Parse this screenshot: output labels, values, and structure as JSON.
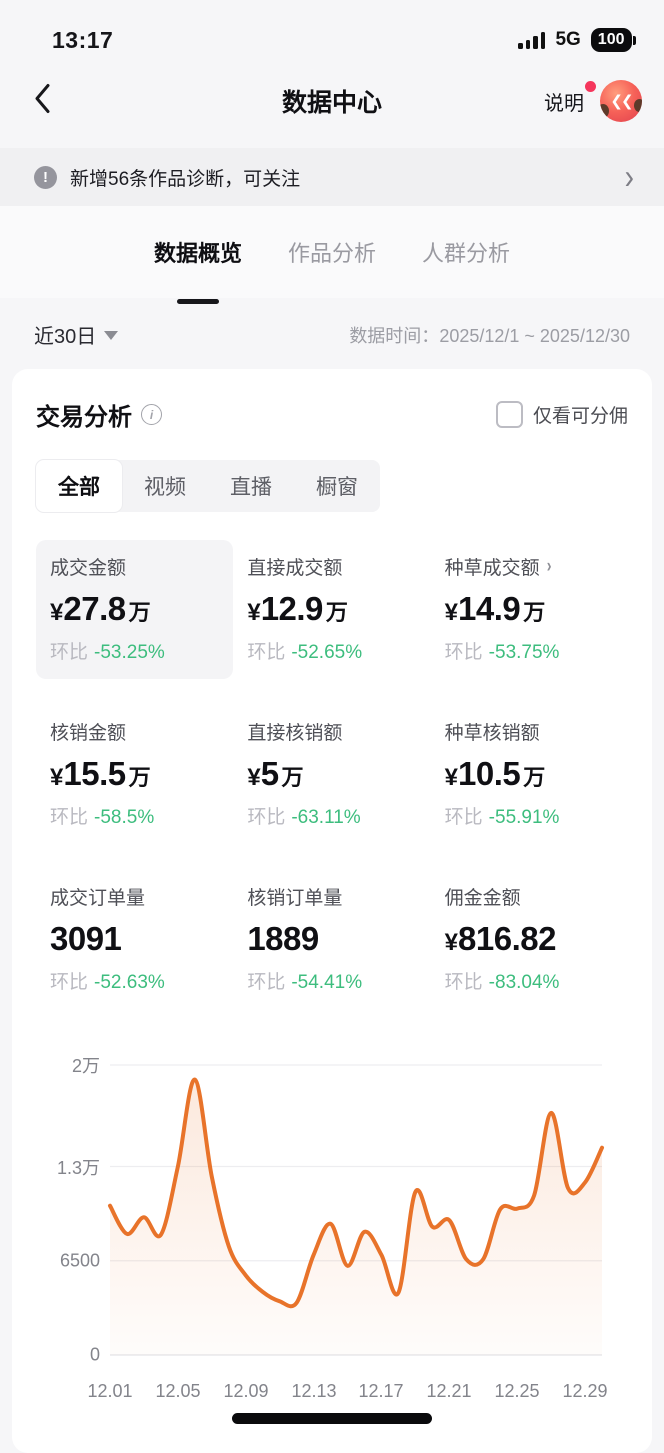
{
  "status_bar": {
    "time": "13:17",
    "network": "5G",
    "battery": "100"
  },
  "header": {
    "title": "数据中心",
    "help_label": "说明"
  },
  "notice": {
    "text": "新增56条作品诊断，可关注"
  },
  "tabs": [
    {
      "label": "数据概览",
      "active": true
    },
    {
      "label": "作品分析",
      "active": false
    },
    {
      "label": "人群分析",
      "active": false
    }
  ],
  "filter": {
    "range_label": "近30日",
    "date_label": "数据时间：",
    "date_range": "2025/12/1 ~ 2025/12/30"
  },
  "section": {
    "title": "交易分析",
    "checkbox_label": "仅看可分佣",
    "checkbox_checked": false
  },
  "sub_tabs": [
    {
      "label": "全部",
      "active": true
    },
    {
      "label": "视频",
      "active": false
    },
    {
      "label": "直播",
      "active": false
    },
    {
      "label": "橱窗",
      "active": false
    }
  ],
  "metrics_common": {
    "ratio_label": "环比"
  },
  "metrics": [
    {
      "label": "成交金额",
      "prefix": "¥",
      "num": "27.8",
      "suffix": "万",
      "ratio": "-53.25%"
    },
    {
      "label": "直接成交额",
      "prefix": "¥",
      "num": "12.9",
      "suffix": "万",
      "ratio": "-52.65%"
    },
    {
      "label": "种草成交额",
      "prefix": "¥",
      "num": "14.9",
      "suffix": "万",
      "ratio": "-53.75%"
    },
    {
      "label": "核销金额",
      "prefix": "¥",
      "num": "15.5",
      "suffix": "万",
      "ratio": "-58.5%"
    },
    {
      "label": "直接核销额",
      "prefix": "¥",
      "num": "5",
      "suffix": "万",
      "ratio": "-63.11%"
    },
    {
      "label": "种草核销额",
      "prefix": "¥",
      "num": "10.5",
      "suffix": "万",
      "ratio": "-55.91%"
    },
    {
      "label": "成交订单量",
      "num": "3091",
      "ratio": "-52.63%"
    },
    {
      "label": "核销订单量",
      "num": "1889",
      "ratio": "-54.41%"
    },
    {
      "label": "佣金金额",
      "prefix": "¥",
      "num": "816.82",
      "ratio": "-83.04%"
    }
  ],
  "chart_data": {
    "type": "area",
    "x": [
      "12.01",
      "12.02",
      "12.03",
      "12.04",
      "12.05",
      "12.06",
      "12.07",
      "12.08",
      "12.09",
      "12.10",
      "12.11",
      "12.12",
      "12.13",
      "12.14",
      "12.15",
      "12.16",
      "12.17",
      "12.18",
      "12.19",
      "12.20",
      "12.21",
      "12.22",
      "12.23",
      "12.24",
      "12.25",
      "12.26",
      "12.27",
      "12.28",
      "12.29",
      "12.30"
    ],
    "values": [
      10300,
      8350,
      9500,
      8300,
      13000,
      19000,
      12300,
      7500,
      5500,
      4350,
      3700,
      3600,
      6900,
      9050,
      6150,
      8500,
      6900,
      4300,
      11250,
      8850,
      9300,
      6600,
      6600,
      10050,
      10100,
      11000,
      16700,
      11500,
      11900,
      14300
    ],
    "x_tick_labels": [
      "12.01",
      "12.05",
      "12.09",
      "12.13",
      "12.17",
      "12.21",
      "12.25",
      "12.29"
    ],
    "y_ticks": [
      {
        "value": 0,
        "label": "0"
      },
      {
        "value": 6500,
        "label": "6500"
      },
      {
        "value": 13000,
        "label": "1.3万"
      },
      {
        "value": 20000,
        "label": "2万"
      }
    ],
    "ylim": [
      0,
      20000
    ],
    "line_color": "#e8732a",
    "grid": true,
    "legend": false,
    "title": ""
  },
  "colors": {
    "accent_orange": "#e8732a",
    "ratio_green": "#3dbd7e",
    "badge_red": "#f5365c"
  }
}
